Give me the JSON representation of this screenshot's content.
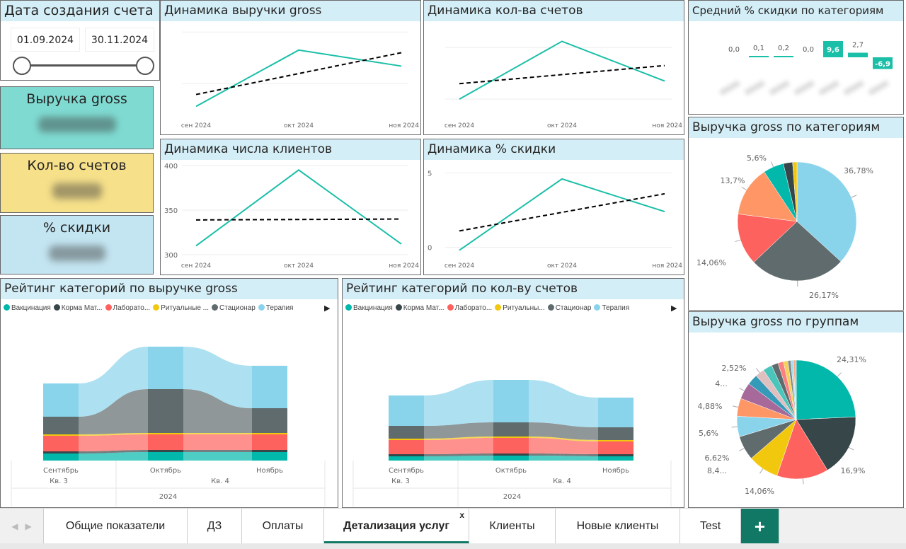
{
  "slicer": {
    "title": "Дата создания счета",
    "from": "01.09.2024",
    "to": "30.11.2024",
    "range_fraction": [
      0,
      1
    ]
  },
  "kpis": [
    {
      "label": "Выручка gross",
      "color": "#7fdbd2"
    },
    {
      "label": "Кол-во счетов",
      "color": "#f6e08a"
    },
    {
      "label": "% скидки",
      "color": "#c3e5f1"
    }
  ],
  "colors": {
    "line": "#1abfa8",
    "trend": "#000000",
    "header": "#d4eef7",
    "accent": "#117865"
  },
  "line_charts": [
    {
      "title": "Динамика выручки gross",
      "type": "line",
      "x": [
        "сен 2024",
        "окт 2024",
        "ноя 2024"
      ],
      "values": [
        2.56,
        3.65,
        3.34
      ],
      "trend": [
        2.79,
        3.6
      ],
      "ylim": [
        2.4,
        4.1
      ],
      "gridlines": [
        3,
        4
      ],
      "ytick_labels": []
    },
    {
      "title": "Динамика кол-ва счетов",
      "type": "line",
      "x": [
        "сен 2024",
        "окт 2024",
        "ноя 2024"
      ],
      "values": [
        1.0,
        2.12,
        1.35
      ],
      "trend": [
        1.3,
        1.65
      ],
      "ylim": [
        0.7,
        2.4
      ],
      "gridlines": [
        1,
        2
      ],
      "ytick_labels": []
    },
    {
      "title": "Динамика числа клиентов",
      "type": "line",
      "x": [
        "сен 2024",
        "окт 2024",
        "ноя 2024"
      ],
      "values": [
        310,
        395,
        312
      ],
      "trend": [
        339,
        340
      ],
      "ylim": [
        300,
        400
      ],
      "gridlines": [
        300,
        350,
        400
      ],
      "ytick_labels": [
        "300",
        "350",
        "400"
      ]
    },
    {
      "title": "Динамика % скидки",
      "type": "line",
      "x": [
        "сен 2024",
        "окт 2024",
        "ноя 2024"
      ],
      "values": [
        -0.2,
        4.6,
        2.4
      ],
      "trend": [
        1.1,
        3.6
      ],
      "ylim": [
        -0.5,
        5.5
      ],
      "gridlines": [
        0,
        5
      ],
      "ytick_labels": [
        "0",
        "5"
      ]
    }
  ],
  "discount_chart": {
    "title": "Средний % скидки по категориям",
    "type": "bar",
    "labels": [
      "0,0",
      "0,1",
      "0,2",
      "0,0",
      "9,6",
      "2,7",
      "-6,9"
    ],
    "values": [
      0.0,
      0.1,
      0.2,
      0.0,
      9.6,
      2.7,
      -6.9
    ]
  },
  "pie_categories": {
    "title": "Выручка gross по категориям",
    "type": "pie",
    "values": [
      36.78,
      26.17,
      14.06,
      13.7,
      5.6,
      2.5,
      1.19
    ],
    "labels": [
      "36,78%",
      "26,17%",
      "14,06%",
      "13,7%",
      "5,6%",
      "",
      ""
    ],
    "colors": [
      "#8ad4eb",
      "#5f6b6d",
      "#fd625e",
      "#fe9666",
      "#01b8aa",
      "#374649",
      "#f2c80f"
    ]
  },
  "pie_groups": {
    "title": "Выручка gross по группам",
    "type": "pie",
    "values": [
      24.31,
      16.9,
      14.06,
      8.4,
      6.62,
      5.6,
      4.88,
      4.5,
      2.9,
      2.52,
      2.5,
      1.8,
      1.5,
      1.2,
      0.8,
      0.7,
      0.5,
      0.3
    ],
    "labels": [
      "24,31%",
      "16,9%",
      "14,06%",
      "8,4...",
      "6,62%",
      "5,6%",
      "4,88%",
      "4...",
      "",
      "2,52%",
      "",
      "",
      "",
      "",
      "",
      "",
      "",
      ""
    ],
    "colors": [
      "#01b8aa",
      "#374649",
      "#fd625e",
      "#f2c80f",
      "#5f6b6d",
      "#8ad4eb",
      "#fe9666",
      "#a66999",
      "#3599b8",
      "#dfbfbf",
      "#4ac5bb",
      "#5f6b6d",
      "#fb8281",
      "#f4d25a",
      "#7f898a",
      "#a4ddee",
      "#fdab89",
      "#b687ac"
    ]
  },
  "ribbon_legend": [
    "Вакцинация",
    "Корма Мат...",
    "Лаборато...",
    "Ритуальные ...",
    "Стационар",
    "Терапия"
  ],
  "ribbon_legend2": [
    "Вакцинация",
    "Корма Мат...",
    "Лаборато...",
    "Ритуальны...",
    "Стационар",
    "Терапия"
  ],
  "ribbon_colors": [
    "#01b8aa",
    "#374649",
    "#fd625e",
    "#f2c80f",
    "#5f6b6d",
    "#8ad4eb"
  ],
  "ribbon_charts": [
    {
      "title": "Рейтинг категорий по выручке gross",
      "type": "ribbon",
      "months": [
        "Сентябрь",
        "Октябрь",
        "Ноябрь"
      ],
      "quarters": [
        "Кв. 3",
        "Кв. 4"
      ],
      "year": "2024",
      "series": [
        [
          10,
          12,
          12
        ],
        [
          3,
          3,
          3
        ],
        [
          22,
          22,
          22
        ],
        [
          2,
          2,
          2
        ],
        [
          25,
          62,
          35
        ],
        [
          47,
          60,
          60
        ]
      ]
    },
    {
      "title": "Рейтинг категорий по кол-ву счетов",
      "type": "ribbon",
      "months": [
        "Сентябрь",
        "Октябрь",
        "Ноябрь"
      ],
      "quarters": [
        "Кв. 3",
        "Кв. 4"
      ],
      "year": "2024",
      "series": [
        [
          6,
          7,
          6
        ],
        [
          3,
          3,
          3
        ],
        [
          20,
          22,
          18
        ],
        [
          2,
          2,
          2
        ],
        [
          18,
          20,
          18
        ],
        [
          43,
          60,
          42
        ]
      ]
    }
  ],
  "tabs": [
    {
      "label": "Общие показатели"
    },
    {
      "label": "ДЗ"
    },
    {
      "label": "Оплаты"
    },
    {
      "label": "Детализация услуг",
      "active": true,
      "close": "x"
    },
    {
      "label": "Клиенты"
    },
    {
      "label": "Новые клиенты"
    },
    {
      "label": "Test"
    }
  ],
  "add_tab": "+"
}
